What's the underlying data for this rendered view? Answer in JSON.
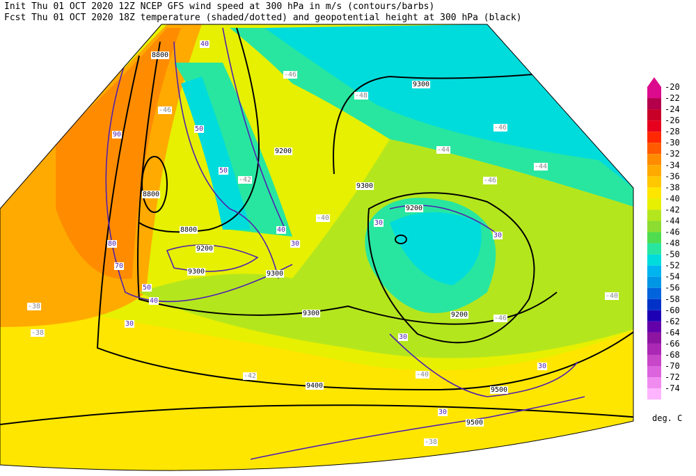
{
  "header": {
    "line1": "Init  Thu 01 OCT 2020 12Z  NCEP GFS wind speed at 300 hPa in m/s (contours/barbs)",
    "line2": "Fcst Thu 01 OCT 2020 18Z  temperature (shaded/dotted) and geopotential height at 300 hPa (black)"
  },
  "colorbar": {
    "unit": "deg. C",
    "ticks": [
      -20,
      -22,
      -24,
      -26,
      -28,
      -30,
      -32,
      -34,
      -36,
      -38,
      -40,
      -42,
      -44,
      -46,
      -48,
      -50,
      -52,
      -54,
      -56,
      -58,
      -60,
      -62,
      -64,
      -66,
      -68,
      -70,
      -72,
      -74
    ],
    "colors": [
      "#dc0a8c",
      "#b4004b",
      "#c80028",
      "#e6001e",
      "#ff2800",
      "#ff5a00",
      "#ff8c00",
      "#ffaa00",
      "#ffc800",
      "#ffe600",
      "#e6f000",
      "#b4e61e",
      "#8cdc32",
      "#50dc50",
      "#28e6a0",
      "#00dcdc",
      "#00b4f0",
      "#0096e6",
      "#0064dc",
      "#0032c8",
      "#1e00b4",
      "#6400aa",
      "#8c14a0",
      "#aa28b4",
      "#c846c8",
      "#dc64dc",
      "#f08cf0",
      "#ffb4ff"
    ]
  },
  "map": {
    "height_labels": [
      "8800",
      "9300",
      "9200",
      "8800",
      "8800",
      "9300",
      "9200",
      "9300",
      "9200",
      "9300",
      "9400",
      "9300",
      "9500",
      "9200",
      "9500"
    ],
    "wind_labels": [
      "40",
      "50",
      "50",
      "90",
      "80",
      "70",
      "30",
      "40",
      "50",
      "40",
      "30",
      "30",
      "30",
      "30",
      "30",
      "30"
    ],
    "temp_labels": [
      "-46",
      "-48",
      "-46",
      "-46",
      "-44",
      "-44",
      "-46",
      "-42",
      "-40",
      "-38",
      "-38",
      "-42",
      "-40",
      "-46",
      "-40",
      "-38"
    ]
  }
}
